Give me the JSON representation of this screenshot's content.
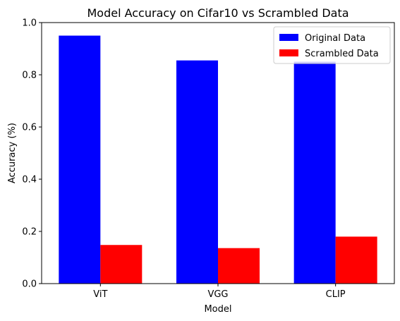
{
  "chart_data": {
    "type": "bar",
    "title": "Model Accuracy on Cifar10 vs Scrambled Data",
    "xlabel": "Model",
    "ylabel": "Accuracy (%)",
    "categories": [
      "ViT",
      "VGG",
      "CLIP"
    ],
    "series": [
      {
        "name": "Original Data",
        "color": "#0000ff",
        "values": [
          0.95,
          0.855,
          0.85
        ]
      },
      {
        "name": "Scrambled Data",
        "color": "#ff0000",
        "values": [
          0.148,
          0.136,
          0.18
        ]
      }
    ],
    "ylim": [
      0,
      1.0
    ],
    "yticks": [
      "0.0",
      "0.2",
      "0.4",
      "0.6",
      "0.8",
      "1.0"
    ],
    "grid": false,
    "legend_position": "top-right"
  }
}
